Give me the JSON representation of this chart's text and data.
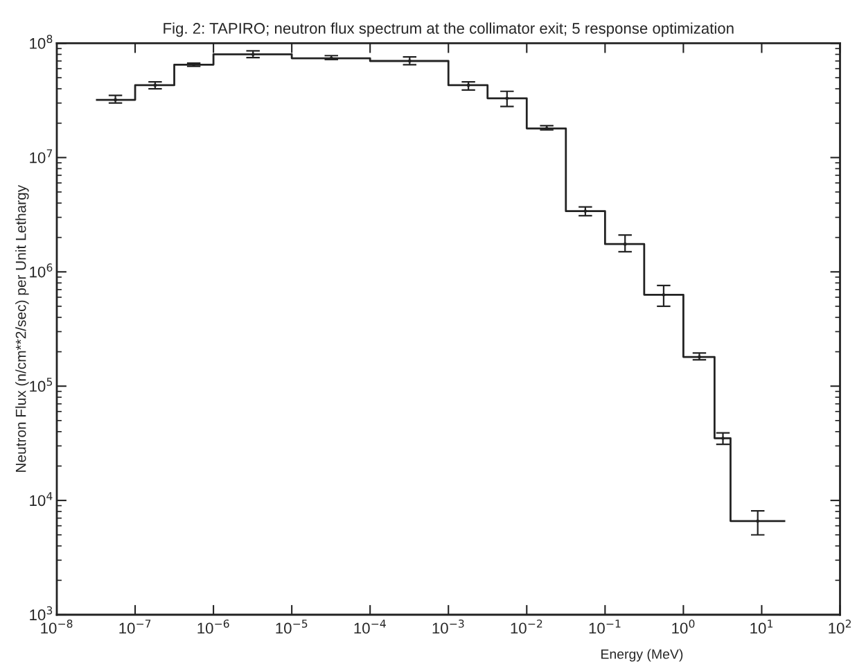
{
  "chart_data": {
    "type": "histogram",
    "title": "Fig. 2: TAPIRO; neutron flux spectrum at the collimator exit; 5 response optimization",
    "xlabel": "Energy (MeV)",
    "ylabel": "Neutron Flux (n/cm**2/sec) per Unit Lethargy",
    "log": "xy",
    "grid": false,
    "color": "#222222",
    "bins": [
      3.16e-08,
      1e-07,
      3.16e-07,
      1e-06,
      1e-05,
      0.0001,
      0.001,
      0.00316,
      0.01,
      0.0316,
      0.1,
      0.316,
      1,
      2.5,
      4,
      20
    ],
    "values": [
      32000000.0,
      43000000.0,
      65000000.0,
      80000000.0,
      74000000.0,
      70000000.0,
      43000000.0,
      33000000.0,
      18000000.0,
      3400000.0,
      1750000.0,
      630000.0,
      180000.0,
      35000.0,
      6600.0
    ],
    "series": [
      {
        "type": "scatter",
        "color": "#222222",
        "x": [
          5.6e-08,
          1.8e-07,
          5.6e-07,
          3.2e-06,
          3.2e-05,
          0.00032,
          0.0018,
          0.0056,
          0.018,
          0.056,
          0.18,
          0.56,
          1.6,
          3.2,
          8.9
        ],
        "values": [
          32000000.0,
          43000000.0,
          65000000.0,
          80000000.0,
          74000000.0,
          70000000.0,
          43000000.0,
          33000000.0,
          18000000.0,
          3400000.0,
          1750000.0,
          630000.0,
          180000.0,
          35000.0,
          6600.0
        ],
        "errors": [
          [
            30000000.0,
            35000000.0
          ],
          [
            40000000.0,
            46000000.0
          ],
          [
            63000000.0,
            67000000.0
          ],
          [
            75000000.0,
            86000000.0
          ],
          [
            72000000.0,
            78000000.0
          ],
          [
            65000000.0,
            76000000.0
          ],
          [
            39000000.0,
            46000000.0
          ],
          [
            28000000.0,
            38000000.0
          ],
          [
            17500000.0,
            19000000.0
          ],
          [
            3100000.0,
            3700000.0
          ],
          [
            1500000.0,
            2100000.0
          ],
          [
            500000.0,
            760000.0
          ],
          [
            170000.0,
            195000.0
          ],
          [
            31000.0,
            39000.0
          ],
          [
            5000.0,
            8100.0
          ]
        ]
      }
    ],
    "xlim": [
      1e-08,
      100
    ],
    "xticks": [
      {
        "value": 1e-08,
        "label": "10$^{−8}$"
      },
      {
        "value": 1e-07,
        "label": "10$^{−7}$"
      },
      {
        "value": 1e-06,
        "label": "10$^{−6}$"
      },
      {
        "value": 1e-05,
        "label": "10$^{−5}$"
      },
      {
        "value": 0.0001,
        "label": "10$^{−4}$"
      },
      {
        "value": 0.001,
        "label": "10$^{−3}$"
      },
      {
        "value": 0.01,
        "label": "10$^{−2}$"
      },
      {
        "value": 0.1,
        "label": "10$^{−1}$"
      },
      {
        "value": 1,
        "label": "10$^{0}$"
      },
      {
        "value": 10,
        "label": "10$^{1}$"
      },
      {
        "value": 100,
        "label": "10$^{2}$"
      }
    ],
    "ylim": [
      1000,
      100000000.0
    ],
    "yticks": [
      {
        "value": 1000,
        "label": "10$^{3}$"
      },
      {
        "value": 10000.0,
        "label": "10$^{4}$"
      },
      {
        "value": 100000.0,
        "label": "10$^{5}$"
      },
      {
        "value": 1000000.0,
        "label": "10$^{6}$"
      },
      {
        "value": 10000000.0,
        "label": "10$^{7}$"
      },
      {
        "value": 100000000.0,
        "label": "10$^{8}$"
      }
    ]
  }
}
